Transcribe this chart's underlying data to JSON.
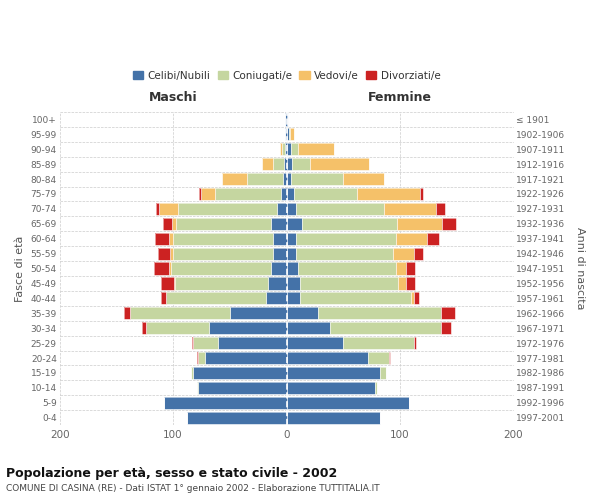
{
  "age_groups": [
    "100+",
    "95-99",
    "90-94",
    "85-89",
    "80-84",
    "75-79",
    "70-74",
    "65-69",
    "60-64",
    "55-59",
    "50-54",
    "45-49",
    "40-44",
    "35-39",
    "30-34",
    "25-29",
    "20-24",
    "15-19",
    "10-14",
    "5-9",
    "0-4"
  ],
  "birth_years": [
    "≤ 1901",
    "1902-1906",
    "1907-1911",
    "1912-1916",
    "1917-1921",
    "1922-1926",
    "1927-1931",
    "1932-1936",
    "1937-1941",
    "1942-1946",
    "1947-1951",
    "1952-1956",
    "1957-1961",
    "1962-1966",
    "1967-1971",
    "1972-1976",
    "1977-1981",
    "1982-1986",
    "1987-1991",
    "1992-1996",
    "1997-2001"
  ],
  "male_celibe": [
    1,
    1,
    1,
    2,
    3,
    5,
    8,
    14,
    12,
    12,
    14,
    16,
    18,
    50,
    68,
    60,
    72,
    82,
    78,
    108,
    88
  ],
  "male_coniugato": [
    0,
    0,
    3,
    10,
    32,
    58,
    88,
    83,
    88,
    88,
    88,
    82,
    88,
    88,
    56,
    22,
    6,
    2,
    1,
    0,
    0
  ],
  "male_vedovo": [
    0,
    0,
    2,
    10,
    22,
    12,
    16,
    4,
    4,
    3,
    2,
    1,
    0,
    0,
    0,
    0,
    0,
    0,
    0,
    0,
    0
  ],
  "male_divorziato": [
    0,
    0,
    0,
    0,
    0,
    2,
    3,
    8,
    12,
    10,
    13,
    12,
    5,
    5,
    3,
    1,
    1,
    0,
    0,
    0,
    0
  ],
  "fem_nubile": [
    1,
    2,
    4,
    5,
    4,
    7,
    8,
    14,
    8,
    8,
    10,
    12,
    12,
    28,
    38,
    50,
    72,
    82,
    78,
    108,
    82
  ],
  "fem_coniugata": [
    0,
    1,
    6,
    16,
    46,
    55,
    78,
    83,
    88,
    86,
    86,
    86,
    98,
    108,
    98,
    62,
    18,
    6,
    2,
    0,
    0
  ],
  "fem_vedova": [
    0,
    4,
    32,
    52,
    36,
    56,
    46,
    40,
    28,
    18,
    9,
    7,
    2,
    0,
    0,
    0,
    0,
    0,
    0,
    0,
    0
  ],
  "fem_divorziata": [
    0,
    0,
    0,
    0,
    0,
    2,
    8,
    12,
    10,
    8,
    8,
    8,
    5,
    12,
    9,
    2,
    1,
    0,
    0,
    0,
    0
  ],
  "colors": {
    "celibe": "#4472a8",
    "coniugato": "#c5d6a0",
    "vedovo": "#f5c169",
    "divorziato": "#cc2222"
  },
  "title": "Popolazione per età, sesso e stato civile - 2002",
  "subtitle": "COMUNE DI CASINA (RE) - Dati ISTAT 1° gennaio 2002 - Elaborazione TUTTITALIA.IT",
  "xlabel_left": "Maschi",
  "xlabel_right": "Femmine",
  "ylabel_left": "Fasce di età",
  "ylabel_right": "Anni di nascita",
  "xlim": 200,
  "bg_color": "#ffffff",
  "grid_color": "#cccccc"
}
